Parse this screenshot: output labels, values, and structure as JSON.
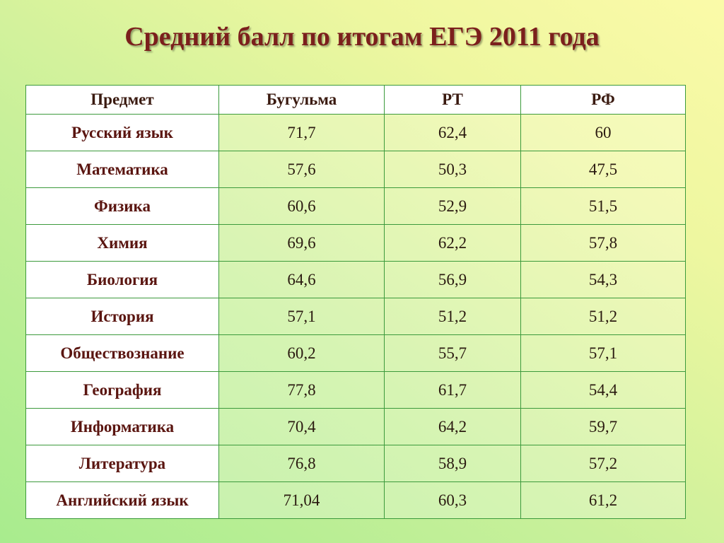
{
  "header": {
    "title": "Средний балл по итогам ЕГЭ 2011 года"
  },
  "table": {
    "columns": [
      "Предмет",
      "Бугульма",
      "РТ",
      "РФ"
    ],
    "rows": [
      [
        "Русский язык",
        "71,7",
        "62,4",
        "60"
      ],
      [
        "Математика",
        "57,6",
        "50,3",
        "47,5"
      ],
      [
        "Физика",
        "60,6",
        "52,9",
        "51,5"
      ],
      [
        "Химия",
        "69,6",
        "62,2",
        "57,8"
      ],
      [
        "Биология",
        "64,6",
        "56,9",
        "54,3"
      ],
      [
        "История",
        "57,1",
        "51,2",
        "51,2"
      ],
      [
        "Обществознание",
        "60,2",
        "55,7",
        "57,1"
      ],
      [
        "География",
        "77,8",
        "61,7",
        "54,4"
      ],
      [
        "Информатика",
        "70,4",
        "64,2",
        "59,7"
      ],
      [
        "Литература",
        "76,8",
        "58,9",
        "57,2"
      ],
      [
        "Английский язык",
        "71,04",
        "60,3",
        "61,2"
      ]
    ]
  }
}
